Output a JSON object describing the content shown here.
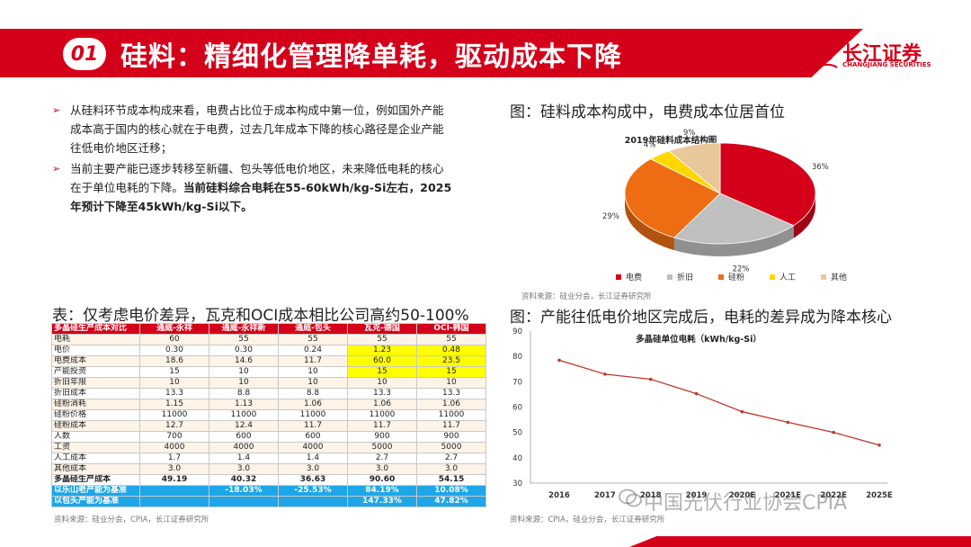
{
  "header": {
    "number": "01",
    "title": "硅料：精细化管理降单耗，驱动成本下降"
  },
  "logo": {
    "cn": "长江证券",
    "en": "CHANGJIANG SECURITIES"
  },
  "bullets": [
    {
      "text": "从硅料环节成本构成来看，电费占比位于成本构成中第一位，例如国外产能成本高于国内的核心就在于电费，过去几年成本下降的核心路径是企业产能往低电价地区迁移；",
      "bold": ""
    },
    {
      "text": "当前主要产能已逐步转移至新疆、包头等低电价地区，未来降低电耗的核心在于单位电耗的下降。",
      "bold": "当前硅料综合电耗在55-60kWh/kg-Si左右，2025年预计下降至45kWh/kg-Si以下。"
    }
  ],
  "pie_caption": "图：硅料成本构成中，电费成本位居首位",
  "pie_source": "资料来源：硅业分会，长江证券研究所",
  "table_caption": "表：仅考虑电价差异，瓦克和OCI成本相比公司高约50-100%",
  "table_source": "资料来源：硅业分会，CPIA，长江证券研究所",
  "line_caption": "图：产能往低电价地区完成后，电耗的差异成为降本核心",
  "line_source": "资料来源：CPIA，硅业分会，长江证券研究所",
  "watermark": "中国光伏行业协会CPIA",
  "table": {
    "headers": [
      "多晶硅生产成本对比",
      "通威-永祥",
      "通威-永祥新",
      "通威-包头",
      "瓦克-德国",
      "OCI-韩国"
    ],
    "rows": [
      [
        "电耗",
        "60",
        "55",
        "55",
        "55",
        "55"
      ],
      [
        "电价",
        "0.30",
        "0.30",
        "0.24",
        "1.23",
        "0.48"
      ],
      [
        "电费成本",
        "18.6",
        "14.6",
        "11.7",
        "60.0",
        "23.5"
      ],
      [
        "产能投资",
        "15",
        "10",
        "10",
        "15",
        "15"
      ],
      [
        "折旧年限",
        "10",
        "10",
        "10",
        "10",
        "10"
      ],
      [
        "折旧成本",
        "13.3",
        "8.8",
        "8.8",
        "13.3",
        "13.3"
      ],
      [
        "硅粉消耗",
        "1.15",
        "1.13",
        "1.06",
        "1.06",
        "1.06"
      ],
      [
        "硅粉价格",
        "11000",
        "11000",
        "11000",
        "11000",
        "11000"
      ],
      [
        "硅粉成本",
        "12.7",
        "12.4",
        "11.7",
        "11.7",
        "11.7"
      ],
      [
        "人数",
        "700",
        "600",
        "600",
        "900",
        "900"
      ],
      [
        "工资",
        "4000",
        "4000",
        "4000",
        "5000",
        "5000"
      ],
      [
        "人工成本",
        "1.7",
        "1.4",
        "1.4",
        "2.7",
        "2.7"
      ],
      [
        "其他成本",
        "3.0",
        "3.0",
        "3.0",
        "3.0",
        "3.0"
      ],
      [
        "多晶硅生产成本",
        "49.19",
        "40.32",
        "36.63",
        "90.60",
        "54.15"
      ],
      [
        "以乐山老产能为基准",
        "",
        "-18.03%",
        "-25.53%",
        "84.19%",
        "10.08%"
      ],
      [
        "以包头产能为基准",
        "",
        "",
        "",
        "147.33%",
        "47.82%"
      ]
    ]
  },
  "chart_data": [
    {
      "type": "pie",
      "title": "2019年硅料成本结构图",
      "categories": [
        "电费",
        "折旧",
        "硅粉",
        "人工",
        "其他"
      ],
      "values": [
        36,
        22,
        29,
        4,
        9
      ],
      "labels": [
        "36%",
        "22%",
        "29%",
        "4%",
        "9%"
      ],
      "colors": [
        "#d4001a",
        "#c0c0c0",
        "#ee6d12",
        "#ffd700",
        "#e8c79a"
      ],
      "legend": "bottom"
    },
    {
      "type": "line",
      "title": "多晶硅单位电耗（kWh/kg-Si）",
      "categories": [
        "2016",
        "2017",
        "2018",
        "2019",
        "2020E",
        "2021E",
        "2022E",
        "2025E"
      ],
      "series": [
        {
          "values": [
            78.5,
            73,
            71,
            65.3,
            58.2,
            54,
            50,
            45
          ],
          "color": "#c0392b"
        }
      ],
      "ylim": [
        30,
        90
      ],
      "yticks": [
        30,
        40,
        50,
        60,
        70,
        80,
        90
      ],
      "grid": false
    }
  ]
}
